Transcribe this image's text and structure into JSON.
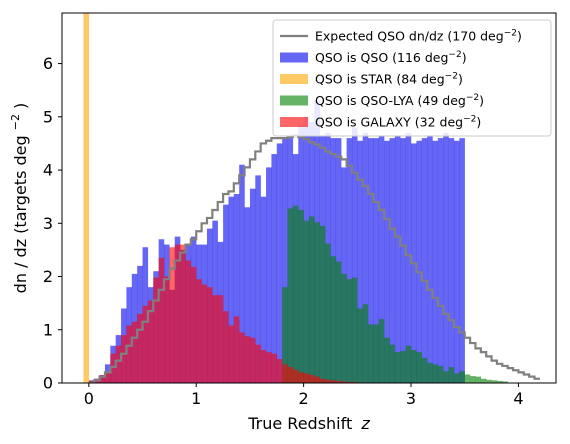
{
  "chart_data": {
    "type": "bar",
    "xlabel": "True Redshift",
    "xlabel_var": "z",
    "ylabel": "dn / dz (targets deg",
    "ylabel_exp": "−2",
    "ylabel_tail": ")",
    "xlim": [
      -0.25,
      4.35
    ],
    "ylim": [
      0,
      6.95
    ],
    "x_ticks": [
      0,
      1,
      2,
      3,
      4
    ],
    "y_ticks": [
      0,
      1,
      2,
      3,
      4,
      5,
      6
    ],
    "legend_position": "top-right",
    "bin_width": 0.05,
    "series": [
      {
        "name": "QSO is QSO (116 deg",
        "exp": "−2",
        "tail": ")",
        "color": "#0000ee",
        "opacity": 0.6,
        "bins": [
          {
            "start": 0.0,
            "values": [
              0.05,
              0.08,
              0.15,
              0.35,
              0.7,
              0.9,
              1.4,
              1.8,
              2.05,
              2.2,
              2.55,
              1.8,
              2.1,
              2.7,
              2.6,
              1.75,
              2.75,
              2.5,
              2.6,
              2.75,
              2.6,
              2.6,
              2.9,
              3.05,
              2.65,
              3.35,
              3.5,
              3.55,
              4.1,
              3.3,
              3.65,
              3.9,
              3.5,
              4.05,
              4.3,
              4.5,
              4.6,
              4.6,
              4.3,
              4.85,
              5.0,
              4.9,
              5.3,
              4.65,
              4.7,
              4.6,
              4.6,
              4.05,
              4.6,
              4.8,
              4.55,
              4.7,
              4.6,
              4.6,
              4.65,
              4.55,
              4.6,
              4.65,
              4.6,
              4.7,
              4.5,
              4.55,
              4.6,
              4.65,
              4.55,
              4.6,
              4.7,
              4.6,
              4.55,
              4.6
            ]
          }
        ]
      },
      {
        "name": "QSO is STAR (84 deg",
        "exp": "−2",
        "tail": ")",
        "color": "#ffa500",
        "opacity": 0.6,
        "bins": [
          {
            "start": -0.05,
            "values": [
              6.95
            ]
          }
        ]
      },
      {
        "name": "QSO is QSO-LYA (49 deg",
        "exp": "−2",
        "tail": ")",
        "color": "#008000",
        "opacity": 0.6,
        "bins": [
          {
            "start": 1.8,
            "values": [
              1.8,
              3.28,
              3.33,
              3.25,
              3.05,
              3.13,
              3.02,
              2.95,
              2.62,
              2.38,
              2.28,
              2.05,
              1.95,
              1.98,
              1.4,
              1.48,
              1.1,
              1.1,
              1.2,
              0.85,
              0.72,
              0.58,
              0.6,
              0.7,
              0.62,
              0.58,
              0.47,
              0.38,
              0.35,
              0.32,
              0.22,
              0.3,
              0.18,
              0.22,
              0.16,
              0.13,
              0.12,
              0.08,
              0.06,
              0.05,
              0.04,
              0.03
            ]
          }
        ]
      },
      {
        "name": "QSO is GALAXY (32 deg",
        "exp": "−2",
        "tail": ")",
        "color": "#ff0000",
        "opacity": 0.6,
        "bins": [
          {
            "start": 0.0,
            "values": [
              0.04,
              0.08,
              0.15,
              0.2,
              0.55,
              0.7,
              0.9,
              1.08,
              1.15,
              1.3,
              1.45,
              1.55,
              1.98,
              2.35,
              2.0,
              2.55,
              2.6,
              2.6,
              2.3,
              2.18,
              1.95,
              1.85,
              1.8,
              1.65,
              1.65,
              1.35,
              1.08,
              1.25,
              0.95,
              0.88,
              0.85,
              0.72,
              0.62,
              0.58,
              0.55,
              0.45,
              0.35,
              0.3,
              0.25,
              0.2,
              0.18,
              0.15,
              0.12,
              0.08,
              0.06,
              0.05,
              0.04,
              0.03,
              0.02,
              0.02
            ]
          }
        ]
      }
    ],
    "expected": {
      "name": "Expected QSO dn/dz (170 deg",
      "exp": "−2",
      "tail": ")",
      "color": "#808080",
      "start": 0.0,
      "step": 0.05,
      "values": [
        0.0,
        0.05,
        0.12,
        0.2,
        0.3,
        0.42,
        0.55,
        0.7,
        0.85,
        1.0,
        1.15,
        1.35,
        1.55,
        1.75,
        1.95,
        2.15,
        2.3,
        2.45,
        2.6,
        2.7,
        2.85,
        3.0,
        3.1,
        3.25,
        3.4,
        3.55,
        3.6,
        3.75,
        3.9,
        4.05,
        4.2,
        4.35,
        4.5,
        4.55,
        4.6,
        4.6,
        4.6,
        4.62,
        4.65,
        4.62,
        4.58,
        4.52,
        4.48,
        4.42,
        4.35,
        4.3,
        4.25,
        4.2,
        4.08,
        3.95,
        3.82,
        3.7,
        3.55,
        3.4,
        3.25,
        3.08,
        2.9,
        2.75,
        2.58,
        2.4,
        2.25,
        2.08,
        1.92,
        1.75,
        1.6,
        1.45,
        1.3,
        1.18,
        1.05,
        0.95,
        0.85,
        0.75,
        0.65,
        0.58,
        0.5,
        0.42,
        0.36,
        0.32,
        0.28,
        0.24,
        0.2,
        0.16,
        0.12,
        0.08
      ]
    }
  }
}
